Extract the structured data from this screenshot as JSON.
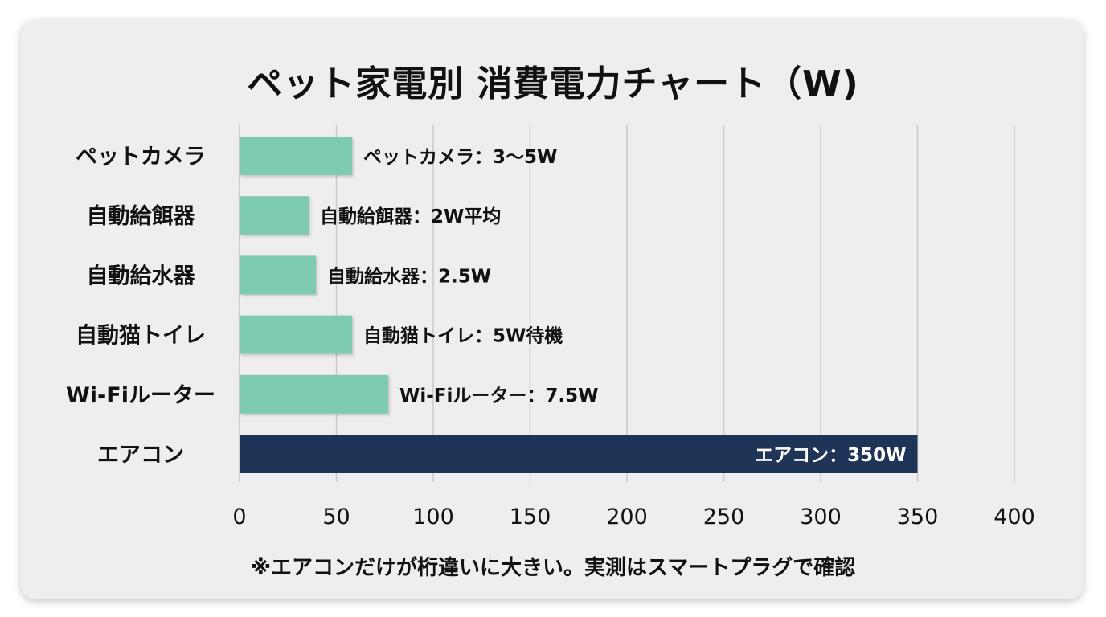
{
  "title": "ペット家電別 消費電力チャート（W)",
  "footnote": "※エアコンだけが桁違いに大きい。実測はスマートプラグで確認",
  "colors": {
    "standard_bar": "#7fcbb0",
    "highlight_bar": "#1f3557",
    "background": "#eeeeee"
  },
  "chart_data": {
    "type": "bar",
    "orientation": "horizontal",
    "title": "ペット家電別 消費電力チャート（W)",
    "categories": [
      "ペットカメラ",
      "自動給餌器",
      "自動給水器",
      "自動猫トイレ",
      "Wi-Fiルーター",
      "エアコン"
    ],
    "values": [
      5,
      2,
      2.5,
      5,
      7.5,
      350
    ],
    "data_labels": [
      "ペットカメラ：3〜5W",
      "自動給餌器：2W平均",
      "自動給水器：2.5W",
      "自動猫トイレ：5W待機",
      "Wi-Fiルーター：7.5W",
      "エアコン：350W"
    ],
    "highlight": [
      "エアコン"
    ],
    "xlim": [
      0,
      400
    ],
    "xticks": [
      0,
      50,
      100,
      150,
      200,
      250,
      300,
      350,
      400
    ],
    "grid": true,
    "legend": "none"
  }
}
